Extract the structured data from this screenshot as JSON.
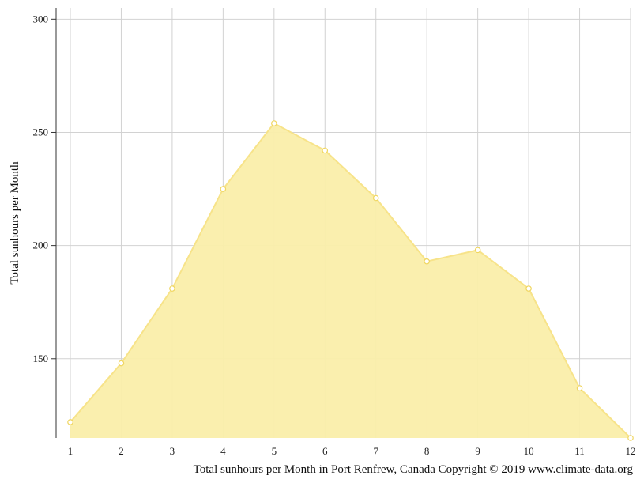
{
  "chart_data": {
    "type": "area",
    "x": [
      1,
      2,
      3,
      4,
      5,
      6,
      7,
      8,
      9,
      10,
      11,
      12
    ],
    "series": [
      {
        "values": [
          122,
          148,
          181,
          225,
          254,
          242,
          221,
          193,
          198,
          181,
          137,
          115
        ]
      }
    ],
    "xlabel": "",
    "ylabel": "Total sunhours per Month",
    "ylim": [
      115,
      305
    ],
    "xlim": [
      1,
      12
    ],
    "yticks": [
      150,
      200,
      250,
      300
    ],
    "xticks": [
      1,
      2,
      3,
      4,
      5,
      6,
      7,
      8,
      9,
      10,
      11,
      12
    ],
    "grid": true,
    "caption": "Total sunhours per Month in Port Renfrew, Canada Copyright © 2019 www.climate-data.org",
    "colors": {
      "fill": "#faeeaa",
      "line": "#f7e389",
      "marker_fill": "#ffffff",
      "marker_stroke": "#f0d660",
      "grid": "#d2d2d2",
      "axis": "#333333"
    }
  }
}
